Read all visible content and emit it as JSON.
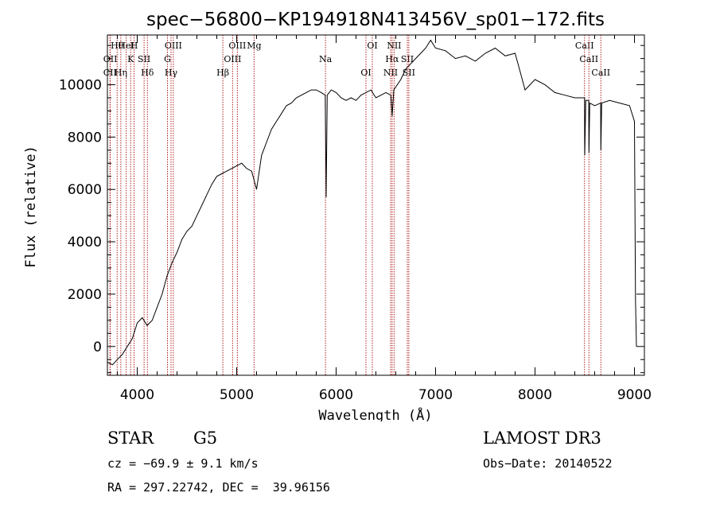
{
  "chart_data": {
    "type": "line",
    "title": "spec−56800−KP194918N413456V_sp01−172.fits",
    "xlabel": "Wavelength (Å)",
    "ylabel": "Flux (relative)",
    "xlim": [
      3700,
      9100
    ],
    "ylim": [
      -1100,
      11900
    ],
    "x_ticks": [
      4000,
      5000,
      6000,
      7000,
      8000,
      9000
    ],
    "y_ticks": [
      0,
      2000,
      4000,
      6000,
      8000,
      10000
    ],
    "series": [
      {
        "name": "spectrum",
        "points": [
          [
            3700,
            -600
          ],
          [
            3750,
            -700
          ],
          [
            3800,
            -500
          ],
          [
            3850,
            -300
          ],
          [
            3900,
            0
          ],
          [
            3950,
            300
          ],
          [
            4000,
            900
          ],
          [
            4050,
            1100
          ],
          [
            4100,
            800
          ],
          [
            4150,
            1000
          ],
          [
            4200,
            1500
          ],
          [
            4250,
            2000
          ],
          [
            4300,
            2700
          ],
          [
            4350,
            3200
          ],
          [
            4400,
            3600
          ],
          [
            4450,
            4100
          ],
          [
            4500,
            4400
          ],
          [
            4550,
            4600
          ],
          [
            4600,
            5000
          ],
          [
            4650,
            5400
          ],
          [
            4700,
            5800
          ],
          [
            4750,
            6200
          ],
          [
            4800,
            6500
          ],
          [
            4850,
            6600
          ],
          [
            4900,
            6700
          ],
          [
            4950,
            6800
          ],
          [
            5000,
            6900
          ],
          [
            5050,
            7000
          ],
          [
            5100,
            6800
          ],
          [
            5150,
            6700
          ],
          [
            5200,
            6000
          ],
          [
            5250,
            7300
          ],
          [
            5300,
            7800
          ],
          [
            5350,
            8300
          ],
          [
            5400,
            8600
          ],
          [
            5450,
            8900
          ],
          [
            5500,
            9200
          ],
          [
            5550,
            9300
          ],
          [
            5600,
            9500
          ],
          [
            5650,
            9600
          ],
          [
            5700,
            9700
          ],
          [
            5750,
            9800
          ],
          [
            5800,
            9800
          ],
          [
            5850,
            9700
          ],
          [
            5890,
            9600
          ],
          [
            5900,
            5700
          ],
          [
            5910,
            9600
          ],
          [
            5950,
            9800
          ],
          [
            6000,
            9700
          ],
          [
            6050,
            9500
          ],
          [
            6100,
            9400
          ],
          [
            6150,
            9500
          ],
          [
            6200,
            9400
          ],
          [
            6250,
            9600
          ],
          [
            6300,
            9700
          ],
          [
            6350,
            9800
          ],
          [
            6400,
            9500
          ],
          [
            6450,
            9600
          ],
          [
            6500,
            9700
          ],
          [
            6550,
            9600
          ],
          [
            6563,
            8800
          ],
          [
            6580,
            9800
          ],
          [
            6650,
            10200
          ],
          [
            6700,
            10600
          ],
          [
            6750,
            10800
          ],
          [
            6800,
            11000
          ],
          [
            6850,
            11200
          ],
          [
            6900,
            11400
          ],
          [
            6950,
            11700
          ],
          [
            7000,
            11400
          ],
          [
            7100,
            11300
          ],
          [
            7200,
            11000
          ],
          [
            7300,
            11100
          ],
          [
            7400,
            10900
          ],
          [
            7500,
            11200
          ],
          [
            7600,
            11400
          ],
          [
            7700,
            11100
          ],
          [
            7800,
            11200
          ],
          [
            7850,
            10500
          ],
          [
            7900,
            9800
          ],
          [
            8000,
            10200
          ],
          [
            8100,
            10000
          ],
          [
            8200,
            9700
          ],
          [
            8300,
            9600
          ],
          [
            8400,
            9500
          ],
          [
            8498,
            9500
          ],
          [
            8500,
            7300
          ],
          [
            8510,
            9400
          ],
          [
            8540,
            9400
          ],
          [
            8542,
            7400
          ],
          [
            8550,
            9300
          ],
          [
            8600,
            9200
          ],
          [
            8660,
            9300
          ],
          [
            8662,
            7500
          ],
          [
            8670,
            9300
          ],
          [
            8750,
            9400
          ],
          [
            8850,
            9300
          ],
          [
            8950,
            9200
          ],
          [
            9000,
            8600
          ],
          [
            9010,
            1800
          ],
          [
            9020,
            0
          ]
        ]
      }
    ],
    "line_markers": [
      {
        "name": "Hθ",
        "wl": 3798
      },
      {
        "name": "K",
        "wl": 3934
      },
      {
        "name": "Hδ",
        "wl": 4102
      },
      {
        "name": "OIII",
        "wl": 4363
      },
      {
        "name": "OIII",
        "wl": 4959
      },
      {
        "name": "CII",
        "wl": 3726
      },
      {
        "name": "HeI",
        "wl": 3889
      },
      {
        "name": "SII",
        "wl": 4069
      },
      {
        "name": "Hγ",
        "wl": 4340
      },
      {
        "name": "OIII",
        "wl": 5007
      },
      {
        "name": "OII",
        "wl": 3729
      },
      {
        "name": "Hη",
        "wl": 3835
      },
      {
        "name": "H",
        "wl": 3968
      },
      {
        "name": "G",
        "wl": 4304
      },
      {
        "name": "Hβ",
        "wl": 4861
      },
      {
        "name": "Mg",
        "wl": 5175
      },
      {
        "name": "Na",
        "wl": 5893
      },
      {
        "name": "OI",
        "wl": 6300
      },
      {
        "name": "OI",
        "wl": 6364
      },
      {
        "name": "Hα",
        "wl": 6563
      },
      {
        "name": "NII",
        "wl": 6548
      },
      {
        "name": "NII",
        "wl": 6583
      },
      {
        "name": "SII",
        "wl": 6716
      },
      {
        "name": "SII",
        "wl": 6731
      },
      {
        "name": "CaII",
        "wl": 8498
      },
      {
        "name": "CaII",
        "wl": 8542
      },
      {
        "name": "CaII",
        "wl": 8662
      }
    ]
  },
  "footer": {
    "object_class": "STAR",
    "subclass": "G5",
    "survey": "LAMOST DR3",
    "cz": "cz = −69.9 ± 9.1 km/s",
    "obs_date": "Obs−Date: 20140522",
    "radec": "RA = 297.22742, DEC =  39.96156"
  },
  "colors": {
    "spectrum": "#000000",
    "markers": "#b22222",
    "axes": "#000000"
  }
}
